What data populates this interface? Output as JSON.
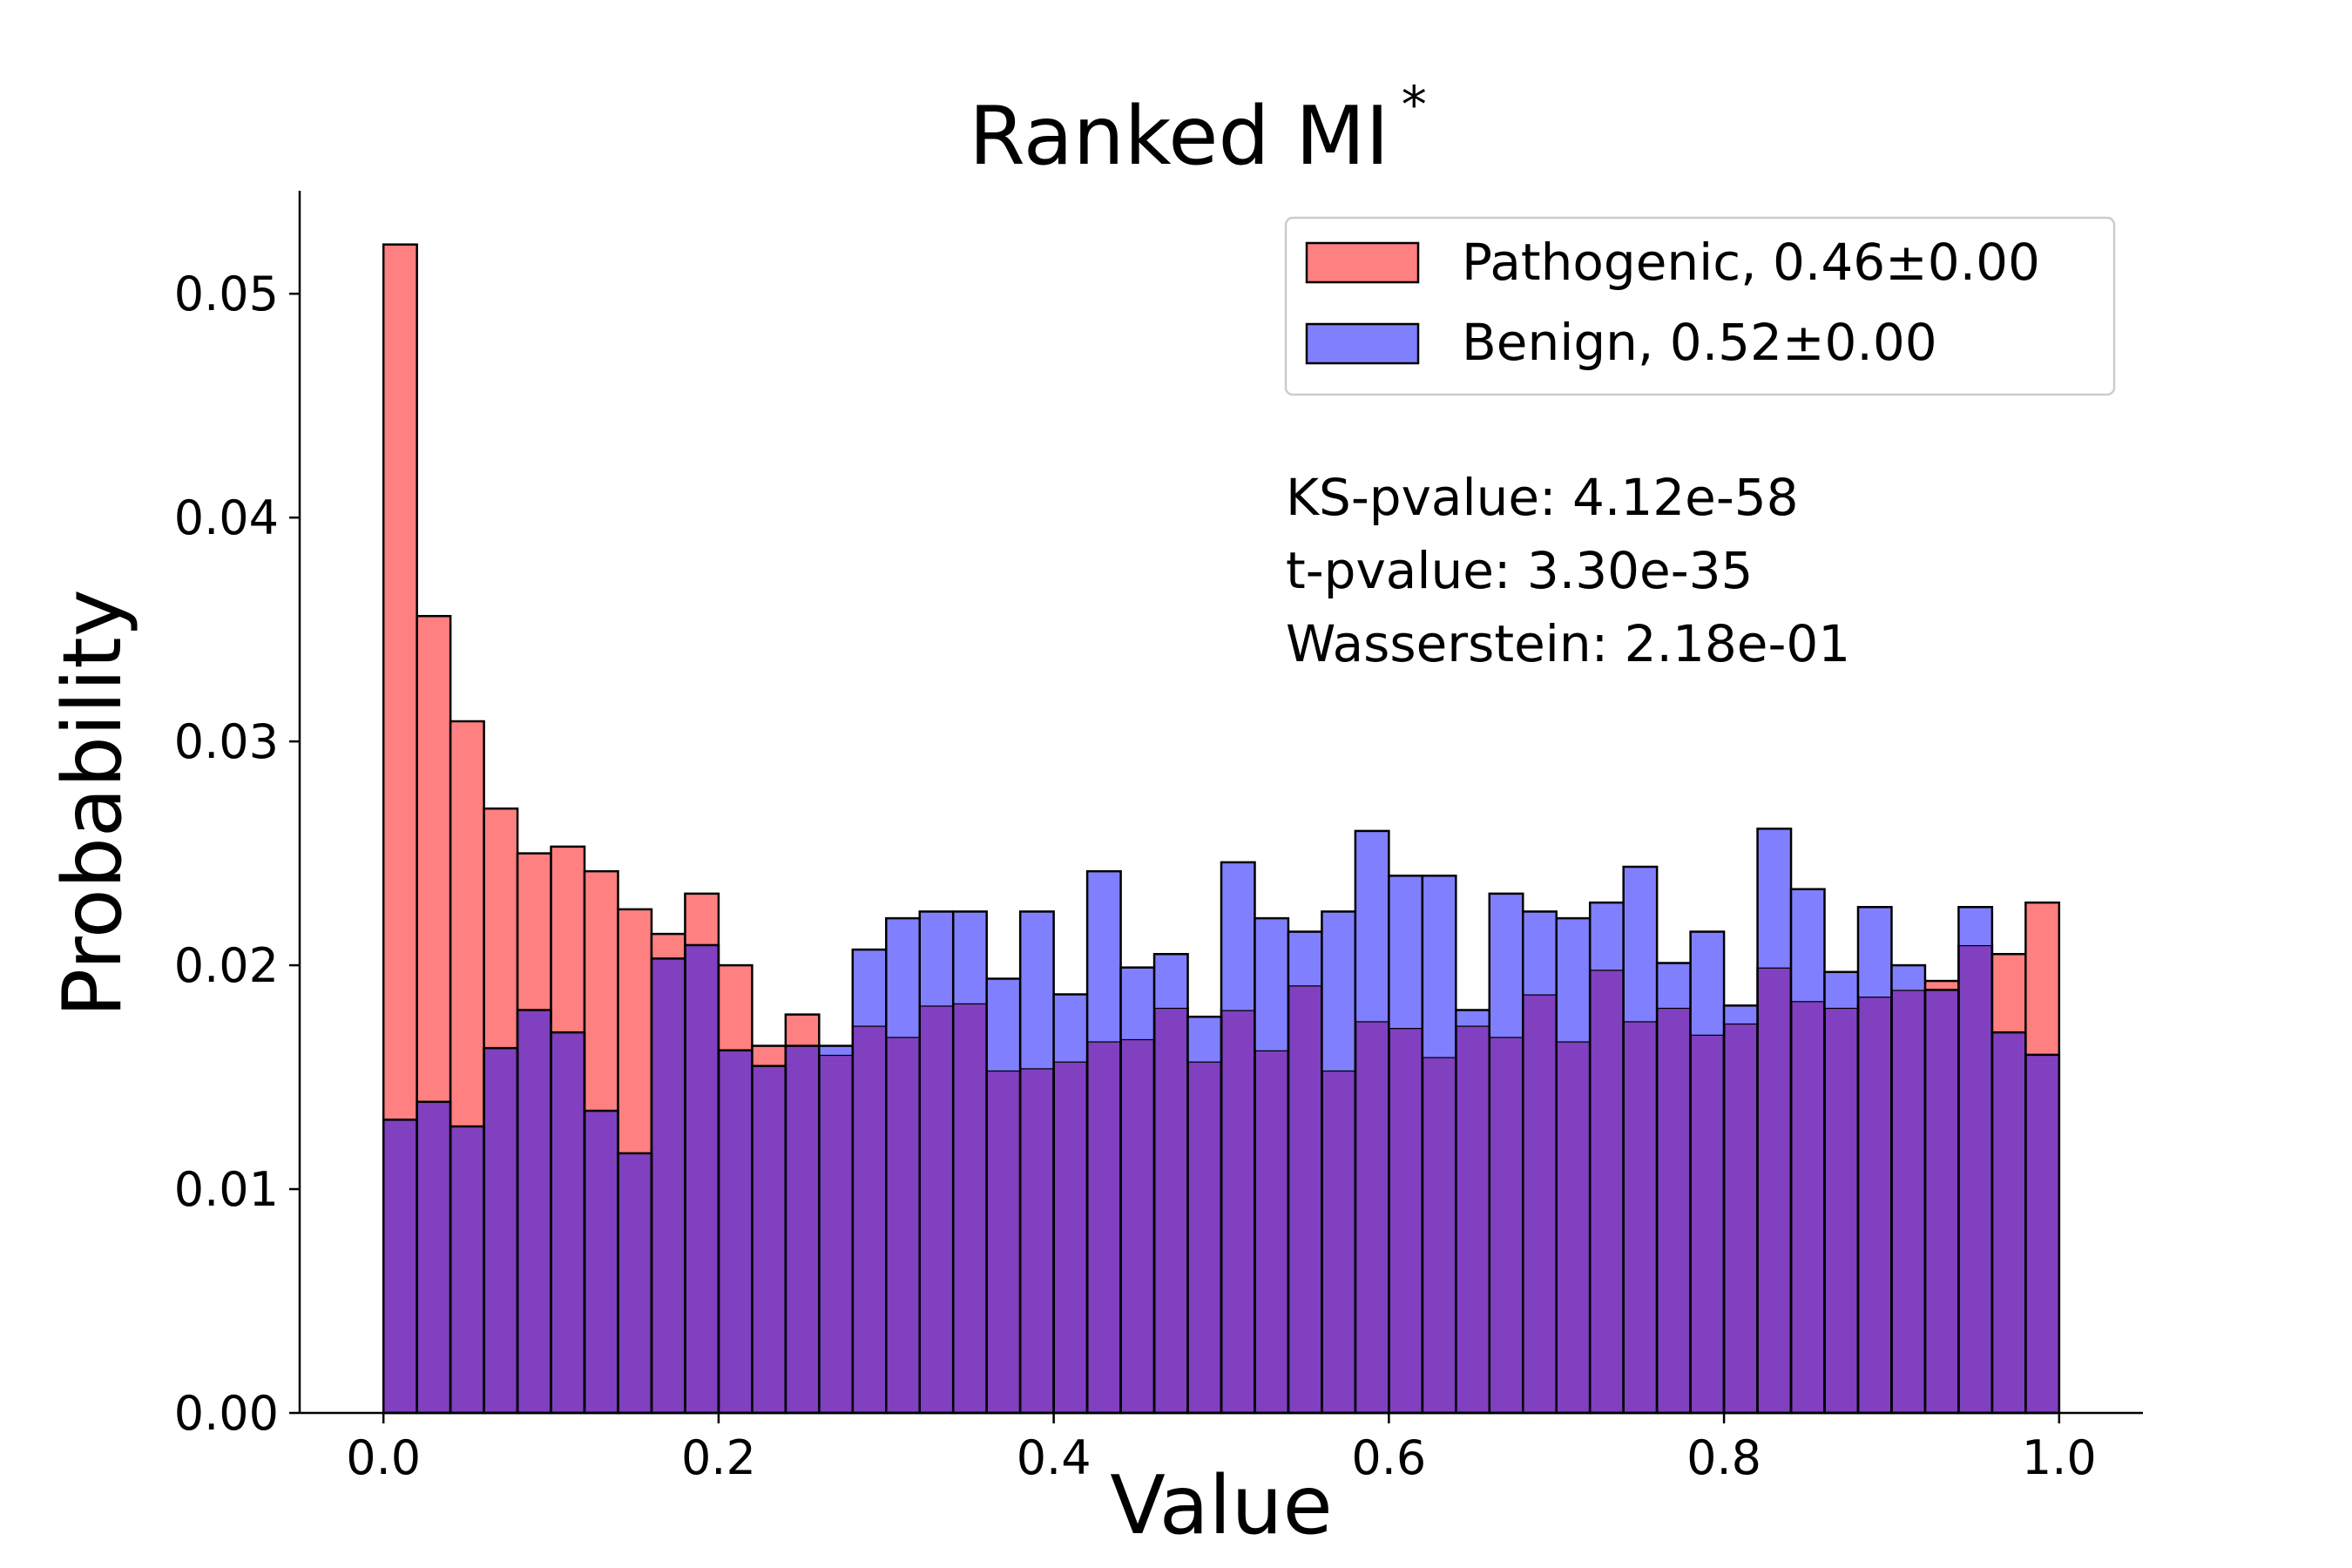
{
  "chart_data": {
    "type": "histogram",
    "title": "Ranked MI",
    "title_superscript": "*",
    "xlabel": "Value",
    "ylabel": "Probability",
    "xlim": [
      -0.05,
      1.05
    ],
    "ylim": [
      0,
      0.0546
    ],
    "x_ticks": [
      "0.0",
      "0.2",
      "0.4",
      "0.6",
      "0.8",
      "1.0"
    ],
    "y_ticks": [
      "0.00",
      "0.01",
      "0.02",
      "0.03",
      "0.04",
      "0.05"
    ],
    "bin_range": [
      0.0,
      1.0
    ],
    "bins": 50,
    "legend_position": "upper right",
    "series": [
      {
        "name": "Pathogenic, 0.46±0.00",
        "color": "#ff8080",
        "blend_color": "#8040c0",
        "values": [
          0.0522,
          0.0356,
          0.0309,
          0.027,
          0.025,
          0.0253,
          0.0242,
          0.0225,
          0.0214,
          0.0232,
          0.02,
          0.0164,
          0.0178,
          0.016,
          0.0173,
          0.0168,
          0.0182,
          0.0183,
          0.0153,
          0.0154,
          0.0157,
          0.0166,
          0.0167,
          0.0181,
          0.0157,
          0.018,
          0.0162,
          0.0191,
          0.0153,
          0.0175,
          0.0172,
          0.0159,
          0.0173,
          0.0168,
          0.0187,
          0.0166,
          0.0198,
          0.0175,
          0.0181,
          0.0169,
          0.0174,
          0.0199,
          0.0184,
          0.0181,
          0.0186,
          0.0189,
          0.0193,
          0.0209,
          0.0205,
          0.0228
        ]
      },
      {
        "name": "Benign, 0.52±0.00",
        "color": "#8080ff",
        "values": [
          0.0131,
          0.0139,
          0.0128,
          0.0163,
          0.018,
          0.017,
          0.0135,
          0.0116,
          0.0203,
          0.0209,
          0.0162,
          0.0155,
          0.0164,
          0.0164,
          0.0207,
          0.0221,
          0.0224,
          0.0224,
          0.0194,
          0.0224,
          0.0187,
          0.0242,
          0.0199,
          0.0205,
          0.0177,
          0.0246,
          0.0221,
          0.0215,
          0.0224,
          0.026,
          0.024,
          0.024,
          0.018,
          0.0232,
          0.0224,
          0.0221,
          0.0228,
          0.0244,
          0.0201,
          0.0215,
          0.0182,
          0.0261,
          0.0234,
          0.0197,
          0.0226,
          0.02,
          0.0189,
          0.0226,
          0.017,
          0.016
        ]
      }
    ],
    "annotations": [
      "KS-pvalue: 4.12e-58",
      "t-pvalue: 3.30e-35",
      "Wasserstein: 2.18e-01"
    ]
  }
}
